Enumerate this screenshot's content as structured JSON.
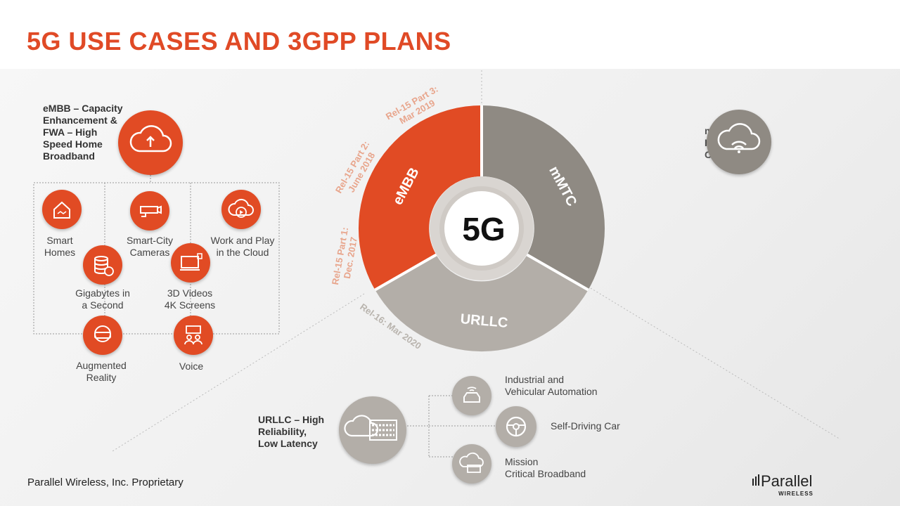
{
  "title": "5G USE CASES AND 3GPP PLANS",
  "colors": {
    "accent": "#e14b24",
    "grey_dark": "#8f8a83",
    "grey_light": "#b3aea8",
    "release_text": "#e8a58c"
  },
  "embb_header": {
    "line1": "eMBB – Capacity",
    "line2": "Enhancement &",
    "line3": "FWA – High",
    "line4": "Speed Home",
    "line5": "Broadband"
  },
  "embb_items": [
    {
      "l1": "Smart",
      "l2": "Homes",
      "icon": "smart-home-icon"
    },
    {
      "l1": "Smart-City",
      "l2": "Cameras",
      "icon": "cctv-camera-icon"
    },
    {
      "l1": "Work and Play",
      "l2": "in the Cloud",
      "icon": "cloud-play-icon"
    },
    {
      "l1": "Gigabytes in",
      "l2": "a Second",
      "icon": "database-clock-icon"
    },
    {
      "l1": "3D Videos",
      "l2": "4K Screens",
      "icon": "monitor-icon"
    },
    {
      "l1": "Augmented",
      "l2": "Reality",
      "icon": "ar-headset-icon"
    },
    {
      "l1": "Voice",
      "l2": "",
      "icon": "voice-chat-icon"
    }
  ],
  "wheel": {
    "center": "5G",
    "segments": [
      {
        "label": "eMBB"
      },
      {
        "label": "mMTC"
      },
      {
        "label": "URLLC"
      }
    ],
    "releases": [
      {
        "l1": "Rel-15 Part 3:",
        "l2": "Mar 2019"
      },
      {
        "l1": "Rel-15 Part 2:",
        "l2": "June 2018"
      },
      {
        "l1": "Rel-15 Part 1:",
        "l2": "Dec. 2017"
      },
      {
        "l1": "Rel-16: Mar 2020",
        "l2": ""
      }
    ]
  },
  "mmtc_fragment": {
    "l1": "m",
    "l2": "I",
    "l3": "C"
  },
  "urllc_header": {
    "line1": "URLLC – High",
    "line2": "Reliability,",
    "line3": "Low Latency"
  },
  "urllc_items": [
    {
      "l1": "Industrial and",
      "l2": "Vehicular Automation",
      "icon": "car-wifi-icon"
    },
    {
      "l1": "Self-Driving Car",
      "l2": "",
      "icon": "steering-wheel-icon"
    },
    {
      "l1": "Mission",
      "l2": "Critical Broadband",
      "icon": "cloud-server-icon"
    }
  ],
  "footer": "Parallel Wireless, Inc. Proprietary",
  "logo": {
    "name": "Parallel",
    "sub": "WIRELESS"
  }
}
